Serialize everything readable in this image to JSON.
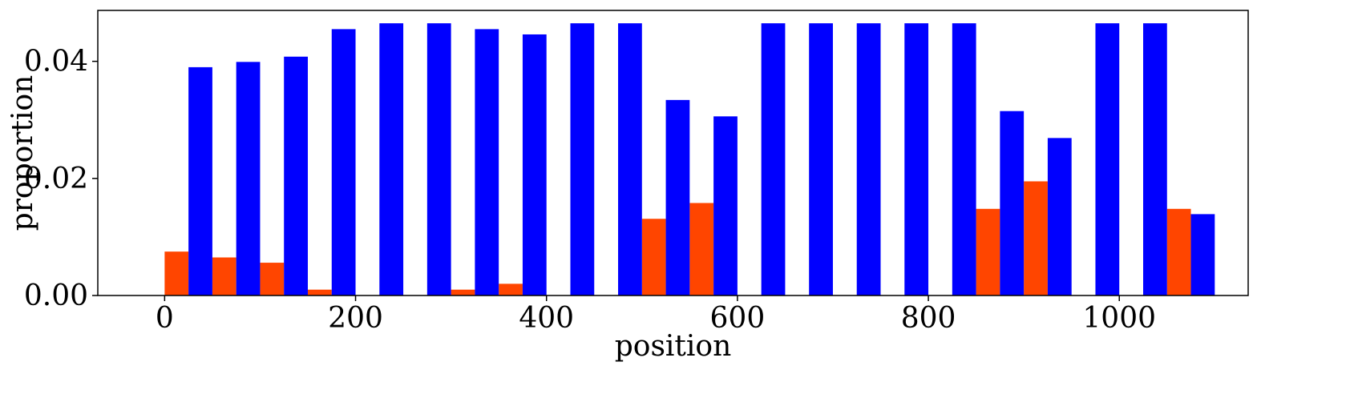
{
  "chart_data": {
    "type": "bar",
    "xlabel": "position",
    "ylabel": "proportion",
    "xlim": [
      -70,
      1135
    ],
    "ylim": [
      0,
      0.0487
    ],
    "x_ticks": [
      0,
      200,
      400,
      600,
      800,
      1000
    ],
    "x_tick_labels": [
      "0",
      "200",
      "400",
      "600",
      "800",
      "1000"
    ],
    "y_ticks": [
      0.0,
      0.02,
      0.04
    ],
    "y_tick_labels": [
      "0.00",
      "0.02",
      "0.04"
    ],
    "bar_width": 25,
    "grid": false,
    "series": [
      {
        "color": "#ff4500",
        "points": [
          {
            "x": 12.5,
            "y": 0.0075
          },
          {
            "x": 62.5,
            "y": 0.0065
          },
          {
            "x": 112.5,
            "y": 0.0056
          },
          {
            "x": 162.5,
            "y": 0.001
          },
          {
            "x": 312.5,
            "y": 0.001
          },
          {
            "x": 362.5,
            "y": 0.002
          },
          {
            "x": 512.5,
            "y": 0.0131
          },
          {
            "x": 562.5,
            "y": 0.0158
          },
          {
            "x": 862.5,
            "y": 0.0148
          },
          {
            "x": 912.5,
            "y": 0.0195
          },
          {
            "x": 1062.5,
            "y": 0.0148
          }
        ]
      },
      {
        "color": "#0000ff",
        "points": [
          {
            "x": 37.5,
            "y": 0.039
          },
          {
            "x": 87.5,
            "y": 0.0399
          },
          {
            "x": 137.5,
            "y": 0.0408
          },
          {
            "x": 187.5,
            "y": 0.0455
          },
          {
            "x": 237.5,
            "y": 0.0465
          },
          {
            "x": 287.5,
            "y": 0.0465
          },
          {
            "x": 337.5,
            "y": 0.0455
          },
          {
            "x": 387.5,
            "y": 0.0446
          },
          {
            "x": 437.5,
            "y": 0.0465
          },
          {
            "x": 487.5,
            "y": 0.0465
          },
          {
            "x": 537.5,
            "y": 0.0334
          },
          {
            "x": 587.5,
            "y": 0.0306
          },
          {
            "x": 637.5,
            "y": 0.0465
          },
          {
            "x": 687.5,
            "y": 0.0465
          },
          {
            "x": 737.5,
            "y": 0.0465
          },
          {
            "x": 787.5,
            "y": 0.0465
          },
          {
            "x": 837.5,
            "y": 0.0465
          },
          {
            "x": 887.5,
            "y": 0.0315
          },
          {
            "x": 937.5,
            "y": 0.0269
          },
          {
            "x": 987.5,
            "y": 0.0465
          },
          {
            "x": 1037.5,
            "y": 0.0465
          },
          {
            "x": 1087.5,
            "y": 0.0139
          }
        ]
      }
    ]
  }
}
